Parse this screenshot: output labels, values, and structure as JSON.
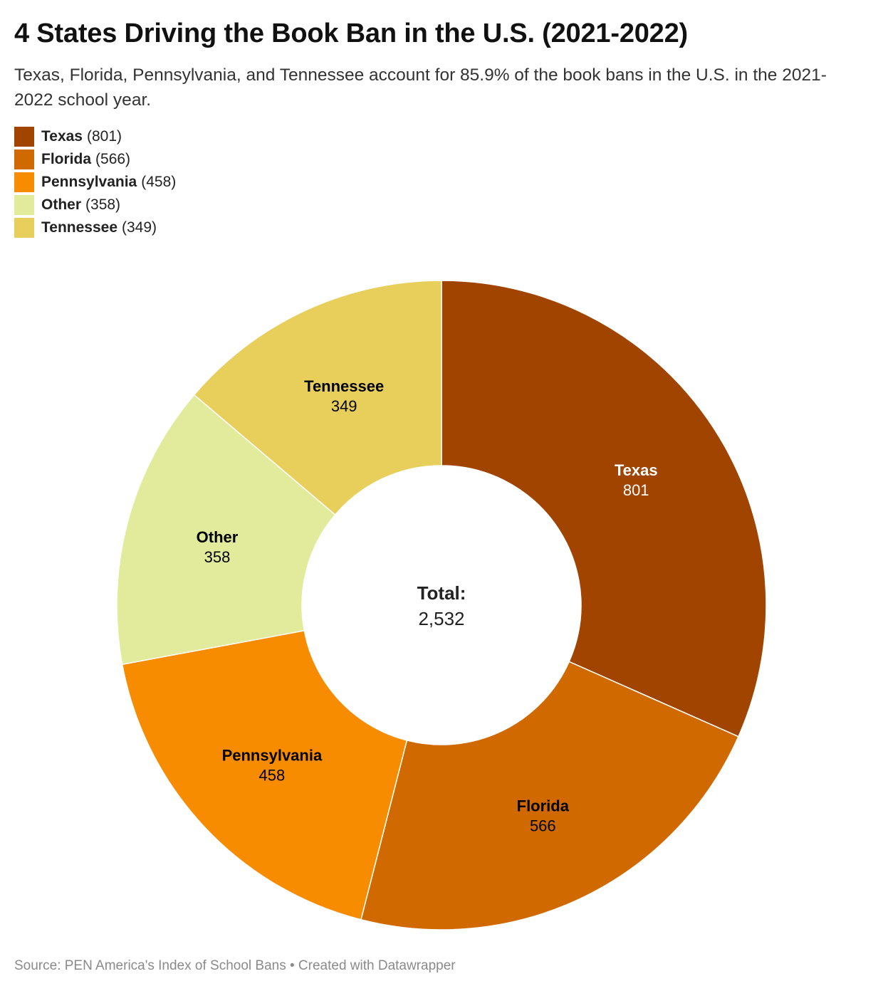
{
  "chart_data": {
    "type": "pie",
    "variant": "donut",
    "title": "4 States Driving the Book Ban in the U.S. (2021-2022)",
    "subtitle": "Texas, Florida, Pennsylvania, and Tennessee account for 85.9% of the book bans in the U.S. in the 2021-2022 school year.",
    "slices": [
      {
        "label": "Texas",
        "value": 801,
        "value_text": "801",
        "legend_value": "(801)",
        "color": "#a04400",
        "label_color": "#ffffff"
      },
      {
        "label": "Florida",
        "value": 566,
        "value_text": "566",
        "legend_value": "(566)",
        "color": "#d06a00",
        "label_color": "#000000"
      },
      {
        "label": "Pennsylvania",
        "value": 458,
        "value_text": "458",
        "legend_value": "(458)",
        "color": "#f78c00",
        "label_color": "#000000"
      },
      {
        "label": "Other",
        "value": 358,
        "value_text": "358",
        "legend_value": "(358)",
        "color": "#e2ea9b",
        "label_color": "#000000"
      },
      {
        "label": "Tennessee",
        "value": 349,
        "value_text": "349",
        "legend_value": "(349)",
        "color": "#e8cf5b",
        "label_color": "#000000"
      }
    ],
    "center": {
      "label": "Total:",
      "value": "2,532"
    },
    "legend_position": "top-left",
    "source": "Source: PEN America's Index of School Bans • Created with Datawrapper"
  }
}
